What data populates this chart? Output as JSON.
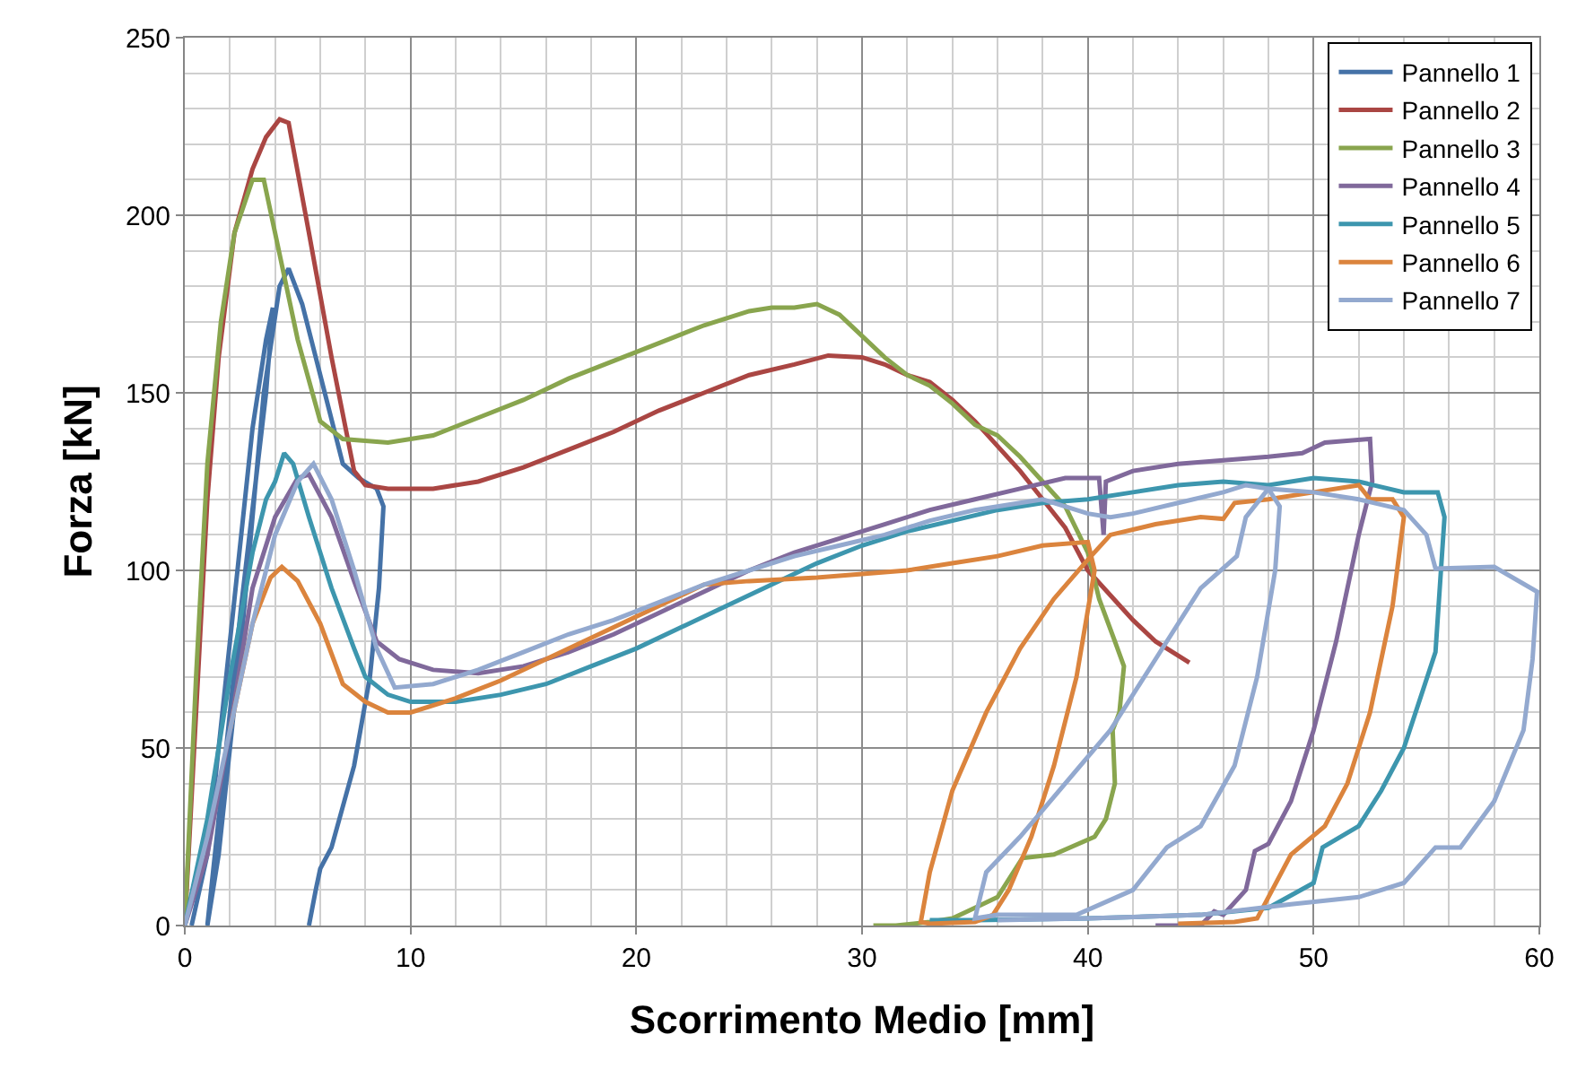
{
  "chart_data": {
    "type": "line",
    "xlabel": "Scorrimento Medio [mm]",
    "ylabel": "Forza [kN]",
    "xlim": [
      0,
      60
    ],
    "xticks": [
      0,
      10,
      20,
      30,
      40,
      50,
      60
    ],
    "ylim": [
      0,
      250
    ],
    "yticks": [
      0,
      50,
      100,
      150,
      200,
      250
    ],
    "grid": true,
    "legend": "top right",
    "marker": "none",
    "line_style": "solid",
    "series": [
      {
        "name": "Pannello 1",
        "color": "#4572a7",
        "x": [
          0.3,
          1,
          2,
          3,
          3.6,
          3.9,
          3.6,
          2.5,
          1.5,
          1,
          1.5,
          2.5,
          3.5,
          4.2,
          4.6,
          5.2,
          6,
          7,
          7.7,
          8.5,
          8.8,
          8.6,
          8.2,
          7.5,
          6.5,
          6,
          5.8,
          5.5
        ],
        "values": [
          0,
          20,
          80,
          140,
          165,
          174,
          150,
          90,
          30,
          0,
          20,
          80,
          150,
          180,
          185,
          175,
          155,
          130,
          126,
          123,
          118,
          95,
          70,
          45,
          22,
          16,
          10,
          0
        ]
      },
      {
        "name": "Pannello 2",
        "color": "#aa4643",
        "x": [
          0,
          0.5,
          1,
          1.5,
          2.2,
          3,
          3.6,
          4.2,
          4.6,
          5.5,
          6.5,
          7.5,
          8,
          9,
          11,
          13,
          15,
          17,
          19,
          21,
          23,
          25,
          27,
          28.5,
          30,
          31,
          32,
          33,
          34,
          35,
          36,
          37,
          38,
          39,
          40,
          41,
          42,
          43,
          44.5
        ],
        "values": [
          0,
          60,
          120,
          160,
          195,
          213,
          222,
          227,
          226,
          195,
          160,
          128,
          124,
          123,
          123,
          125,
          129,
          134,
          139,
          145,
          150,
          155,
          158,
          160.5,
          160,
          158,
          155,
          153,
          148,
          142,
          135,
          128,
          120,
          112,
          100,
          93,
          86,
          80,
          74
        ]
      },
      {
        "name": "Pannello 3",
        "color": "#89a54e",
        "x": [
          0,
          0.5,
          1,
          1.6,
          2.2,
          3,
          3.5,
          4,
          5,
          6,
          7,
          9,
          11,
          13,
          15,
          17,
          19,
          21,
          23,
          25,
          26,
          27,
          28,
          29,
          30,
          31,
          32,
          33,
          34,
          35,
          36,
          37,
          38,
          39,
          40,
          40.5,
          41.2,
          41.6,
          41.4,
          41.1,
          41.2,
          40.8,
          40.3,
          38.5,
          37.1,
          36,
          35,
          34,
          33,
          31.5,
          30.5
        ],
        "values": [
          0,
          70,
          130,
          170,
          195,
          210,
          210,
          195,
          165,
          142,
          137,
          136,
          138,
          143,
          148,
          154,
          159,
          164,
          169,
          173,
          174,
          174,
          175,
          172,
          166,
          160,
          155,
          152,
          147,
          141,
          138,
          132,
          125,
          118,
          105,
          92,
          80,
          73,
          60,
          55,
          40,
          30,
          25,
          20,
          19,
          8,
          5,
          2,
          1,
          0,
          0
        ]
      },
      {
        "name": "Pannello 4",
        "color": "#80699b",
        "x": [
          0,
          1,
          2,
          3,
          4,
          5,
          5.5,
          6.5,
          7.5,
          8.5,
          9.5,
          11,
          13,
          15,
          17,
          19,
          21,
          23,
          25,
          27,
          29,
          31,
          33,
          35,
          37,
          39,
          40.5,
          40.7,
          40.8,
          42,
          44,
          46,
          48,
          49.5,
          50.5,
          52.5,
          52.6,
          52,
          51,
          50,
          49,
          48,
          47.4,
          47,
          46,
          45.6,
          45,
          43
        ],
        "values": [
          0,
          20,
          55,
          95,
          115,
          126,
          127,
          115,
          97,
          80,
          75,
          72,
          71,
          73,
          77,
          82,
          88,
          94,
          100,
          105,
          109,
          113,
          117,
          120,
          123,
          126,
          126,
          110,
          125,
          128,
          130,
          131,
          132,
          133,
          136,
          137,
          125,
          110,
          80,
          55,
          35,
          23,
          21,
          10,
          3,
          4,
          0,
          0
        ]
      },
      {
        "name": "Pannello 5",
        "color": "#3d96ae",
        "x": [
          0,
          1,
          2,
          3,
          3.6,
          4,
          4.4,
          4.8,
          5.5,
          6.5,
          7.5,
          8,
          9,
          10,
          12,
          14,
          16,
          18,
          20,
          22,
          24,
          26,
          28,
          30,
          32,
          34,
          36,
          38,
          40,
          42,
          44,
          46,
          48,
          50,
          52,
          54,
          55.5,
          55.8,
          55.4,
          54,
          53,
          52,
          50.4,
          50,
          48,
          45,
          40,
          35,
          33
        ],
        "values": [
          0,
          30,
          70,
          105,
          120,
          125,
          133,
          130,
          115,
          95,
          78,
          70,
          65,
          63,
          63,
          65,
          68,
          73,
          78,
          84,
          90,
          96,
          102,
          107,
          111,
          114,
          117,
          119,
          120,
          122,
          124,
          125,
          124,
          126,
          125,
          122,
          122,
          115,
          77,
          50,
          38,
          28,
          22,
          12,
          5,
          3,
          2,
          1.5,
          1.5
        ]
      },
      {
        "name": "Pannello 6",
        "color": "#db843d",
        "x": [
          2,
          3,
          3.8,
          4.3,
          5,
          6,
          7,
          8,
          9,
          10,
          12,
          14,
          16,
          18,
          20,
          22,
          23,
          25,
          28,
          30,
          32,
          34,
          36,
          38,
          40,
          40.3,
          39.5,
          38.5,
          37.5,
          36.5,
          35.8,
          35,
          33,
          32.6,
          33,
          34,
          35.5,
          37,
          38.5,
          40,
          41,
          43,
          45,
          46,
          46.5,
          48,
          50,
          52,
          52.5,
          53.5,
          54,
          53.5,
          52.5,
          51.5,
          50.5,
          49,
          48,
          47.5,
          46.5,
          44
        ],
        "values": [
          55,
          85,
          98,
          101,
          97,
          85,
          68,
          63,
          60,
          60,
          64,
          69,
          75,
          81,
          87,
          93,
          96,
          97,
          98,
          99,
          100,
          102,
          104,
          107,
          108,
          100,
          70,
          45,
          25,
          10,
          3,
          1,
          0.5,
          1,
          15,
          38,
          60,
          78,
          92,
          103,
          110,
          113,
          115,
          114.5,
          119,
          120,
          122,
          124,
          120,
          120,
          115,
          90,
          60,
          40,
          28,
          20,
          8,
          2,
          1,
          0.5
        ]
      },
      {
        "name": "Pannello 7",
        "color": "#93a9cf",
        "x": [
          0,
          1,
          2,
          3,
          4,
          5,
          5.7,
          6.5,
          7.5,
          8.5,
          9.3,
          11,
          13,
          15,
          17,
          19,
          21,
          23,
          25,
          27,
          29,
          31,
          33,
          35,
          37,
          38,
          40,
          41,
          42,
          44,
          46,
          47,
          48,
          48.5,
          48.3,
          47.5,
          46.5,
          45,
          43.5,
          42,
          39.5,
          36,
          35,
          35.5,
          37,
          39,
          41,
          43,
          45,
          46.6,
          47,
          48,
          50,
          52,
          54,
          55,
          55.4,
          58,
          59.9,
          59.7,
          59.3,
          58,
          56.5,
          55.4,
          54,
          52,
          49,
          45,
          40,
          36
        ],
        "values": [
          0,
          25,
          55,
          85,
          110,
          125,
          130,
          120,
          100,
          78,
          67,
          68,
          72,
          77,
          82,
          86,
          91,
          96,
          100,
          104,
          107,
          110,
          114,
          117,
          119,
          120,
          116,
          115,
          116,
          119,
          122,
          124,
          123,
          118,
          100,
          70,
          45,
          28,
          22,
          10,
          3,
          3,
          2,
          15,
          25,
          40,
          55,
          75,
          95,
          104,
          115,
          123,
          122,
          120,
          117,
          110,
          100.5,
          101,
          94,
          75,
          55,
          35,
          22,
          22,
          12,
          8,
          6,
          3,
          2,
          1.5
        ]
      }
    ]
  }
}
